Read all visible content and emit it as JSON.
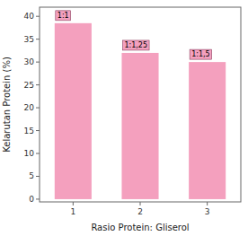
{
  "chart_data": {
    "type": "bar",
    "categories": [
      "1",
      "2",
      "3"
    ],
    "values": [
      38.5,
      32.0,
      30.0
    ],
    "color": "#F4A0BE",
    "annotations": [
      "1:1",
      "1:1,25",
      "1:1,5"
    ],
    "x_label": "Rasio Protein: Gliserol",
    "y_label": "Kelarutan Protein (%)",
    "ylim": [
      -0.6,
      42
    ],
    "yticks": [
      0,
      5,
      10,
      15,
      20,
      25,
      30,
      35,
      40
    ],
    "grid": false
  }
}
